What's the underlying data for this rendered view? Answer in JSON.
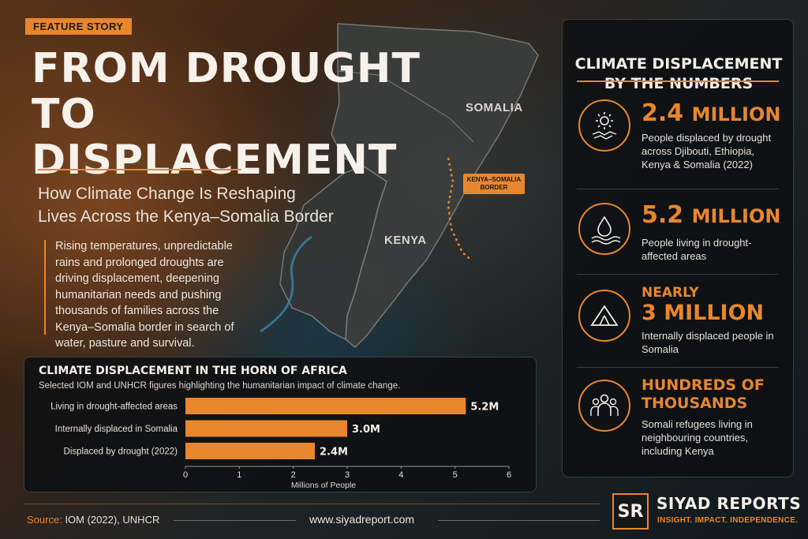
{
  "header": {
    "badge": "FEATURE STORY",
    "title_line1": "FROM DROUGHT",
    "title_line2": "TO DISPLACEMENT",
    "subtitle_line1": "How Climate Change Is Reshaping",
    "subtitle_line2": "Lives Across the Kenya–Somalia Border",
    "intro": "Rising temperatures, unpredictable rains and prolonged droughts are driving displacement, deepening humanitarian needs and pushing thousands of families across the Kenya–Somalia border in search of water, pasture and survival."
  },
  "map": {
    "somalia": "SOMALIA",
    "kenya": "KENYA",
    "border_line1": "KENYA–SOMALIA",
    "border_line2": "BORDER"
  },
  "stats_panel": {
    "title_line1": "CLIMATE DISPLACEMENT",
    "title_line2": "BY THE NUMBERS",
    "items": [
      {
        "icon": "sun-drought-icon",
        "value": "2.4",
        "unit": "MILLION",
        "desc": "People displaced by drought across Djibouti, Ethiopia, Kenya & Somalia (2022)"
      },
      {
        "icon": "water-drop-icon",
        "value": "5.2",
        "unit": "MILLION",
        "desc": "People living in drought-affected areas"
      },
      {
        "icon": "tent-icon",
        "prefix": "NEARLY",
        "value": "3",
        "unit": "MILLION",
        "desc": "Internally displaced people in Somalia"
      },
      {
        "icon": "people-group-icon",
        "line1": "HUNDREDS OF",
        "line2": "THOUSANDS",
        "desc": "Somali refugees living in neighbouring countries, including Kenya"
      }
    ]
  },
  "chart_data": {
    "type": "bar",
    "orientation": "horizontal",
    "title": "CLIMATE DISPLACEMENT IN THE HORN OF AFRICA",
    "subtitle": "Selected IOM and UNHCR figures highlighting the humanitarian impact of climate change.",
    "categories": [
      "Living in drought-affected areas",
      "Internally displaced in Somalia",
      "Displaced by drought (2022)"
    ],
    "values": [
      5.2,
      3.0,
      2.4
    ],
    "data_labels": [
      "5.2M",
      "3.0M",
      "2.4M"
    ],
    "xlabel": "Millions of People",
    "xlim": [
      0,
      6
    ],
    "xticks": [
      "0",
      "1",
      "2",
      "3",
      "4",
      "5",
      "6"
    ],
    "bar_color": "#e8862e",
    "grid": false
  },
  "footer": {
    "source_key": "Source:",
    "source_value": "IOM (2022), UNHCR",
    "website": "www.siyadreport.com",
    "logo": "SR",
    "brand": "SIYAD REPORTS",
    "tagline": "INSIGHT. IMPACT. INDEPENDENCE."
  },
  "colors": {
    "accent": "#e8862e",
    "panel": "#0e1012",
    "text": "#f4efe8"
  }
}
